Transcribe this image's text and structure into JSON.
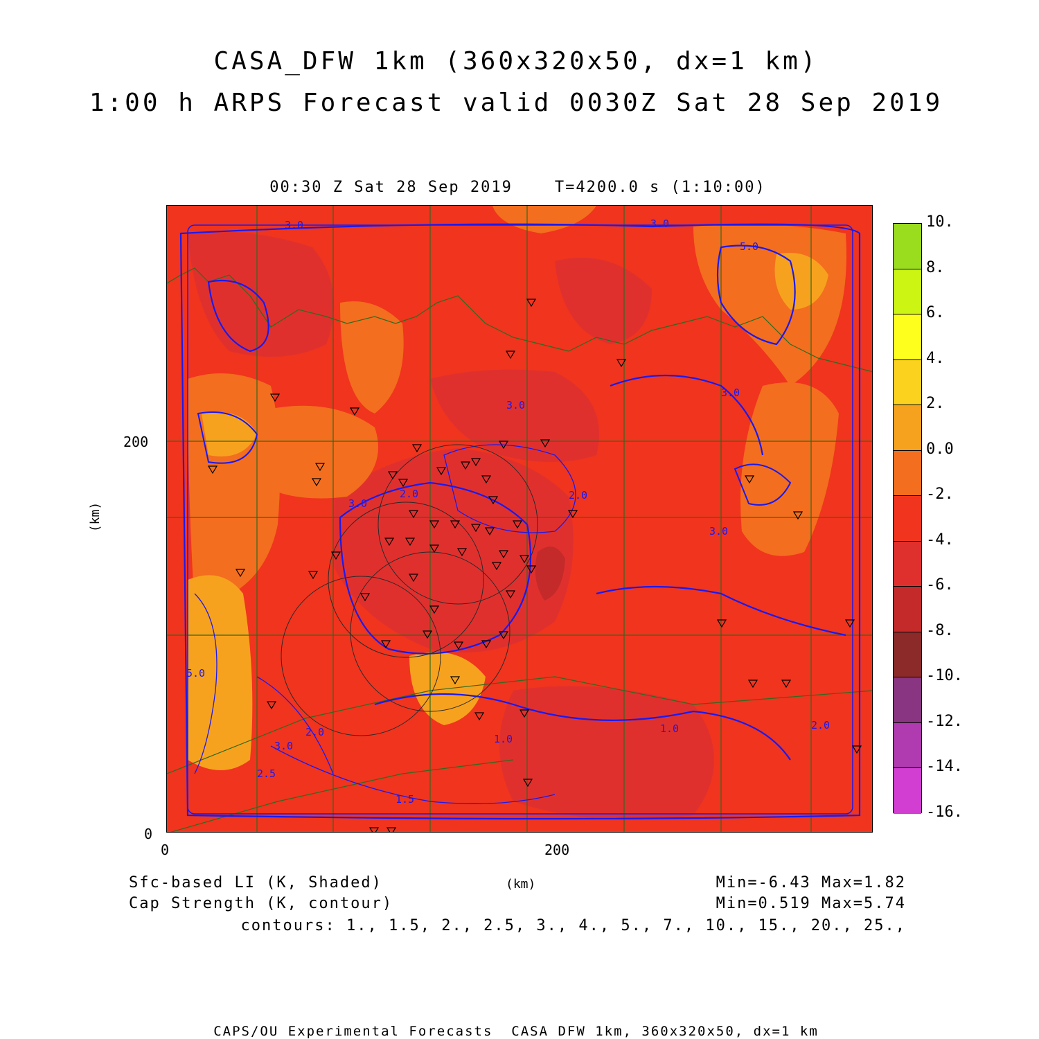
{
  "title_line1": "CASA_DFW 1km (360x320x50, dx=1 km)",
  "title_line2": "1:00 h ARPS Forecast valid 0030Z Sat 28 Sep 2019",
  "subtitle": "00:30 Z Sat 28 Sep 2019    T=4200.0 s (1:10:00)",
  "axes": {
    "x_ticks": [
      "0",
      "200"
    ],
    "y_ticks": [
      "0",
      "200"
    ],
    "x_label": "(km)",
    "y_label": "(km)"
  },
  "legend": {
    "shaded": "Sfc-based LI (K, Shaded)",
    "contour": "Cap Strength (K, contour)"
  },
  "stats": {
    "shaded_minmax": "Min=-6.43 Max=1.82",
    "contour_minmax": "Min=0.519 Max=5.74",
    "contour_levels": "contours: 1., 1.5, 2., 2.5, 3., 4., 5., 7., 10., 15., 20., 25.,"
  },
  "colorbar": {
    "labels": [
      "10.",
      "8.",
      "6.",
      "4.",
      "2.",
      "0.0",
      "-2.",
      "-4.",
      "-6.",
      "-8.",
      "-10.",
      "-12.",
      "-14.",
      "-16."
    ],
    "colors": [
      "#9adc1e",
      "#ccf514",
      "#ffff1e",
      "#fbd21e",
      "#f7a21e",
      "#f36e1e",
      "#f0341e",
      "#e0302e",
      "#c42a2a",
      "#8c2a2a",
      "#8a3582",
      "#b03ab0",
      "#d23dd2"
    ]
  },
  "contour_labels": [
    "3.0",
    "3.0",
    "5.0",
    "3.0",
    "3.0",
    "2.0",
    "3.0",
    "2.0",
    "3.0",
    "5.0",
    "3.0",
    "2.0",
    "2.5",
    "1.5",
    "1.0",
    "1.0",
    "2.0"
  ],
  "footer": "CAPS/OU Experimental Forecasts  CASA DFW 1km, 360x320x50, dx=1 km"
}
